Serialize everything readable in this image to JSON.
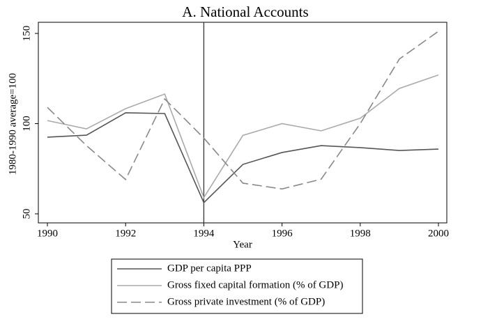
{
  "chart_data": {
    "type": "line",
    "title": "A. National Accounts",
    "x_label": "Year",
    "y_label": "1980-1990 average=100",
    "x": [
      1990,
      1991,
      1992,
      1993,
      1994,
      1995,
      1996,
      1997,
      1998,
      1999,
      2000
    ],
    "series": [
      {
        "name": "GDP per capita PPP",
        "color": "#555555",
        "dash": "solid",
        "values": [
          92.5,
          93.6,
          106,
          105.6,
          56.2,
          77.4,
          84,
          87.8,
          86.7,
          85.1,
          85.9
        ]
      },
      {
        "name": "Gross fixed capital formation (% of GDP)",
        "color": "#aaaaaa",
        "dash": "solid",
        "values": [
          101.7,
          97.1,
          108.3,
          116.4,
          59,
          93.5,
          100,
          96,
          103,
          119.5,
          127
        ]
      },
      {
        "name": "Gross private investment (% of GDP)",
        "color": "#888888",
        "dash": "dashed",
        "values": [
          109,
          87.8,
          69,
          113.7,
          92,
          67,
          63.8,
          69.2,
          100,
          135.8,
          151.2
        ]
      }
    ],
    "xlim": [
      1990,
      2000
    ],
    "xticks": [
      1990,
      1992,
      1994,
      1996,
      1998,
      2000
    ],
    "ylim": [
      50,
      150
    ],
    "yticks": [
      50,
      100,
      150
    ],
    "vline_x": 1994,
    "grid": false,
    "legend_position": "bottom"
  }
}
